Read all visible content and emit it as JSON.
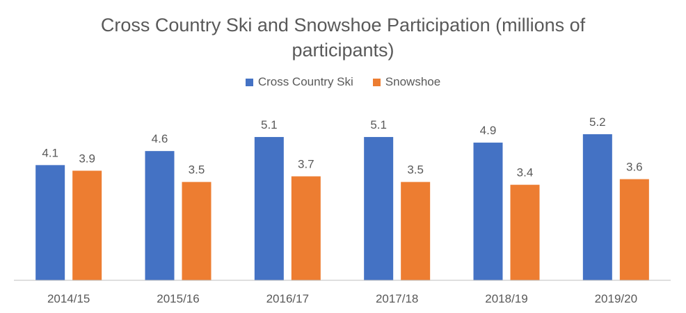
{
  "chart_data": {
    "type": "bar",
    "title": "Cross Country Ski and Snowshoe Participation (millions of participants)",
    "xlabel": "",
    "ylabel": "",
    "categories": [
      "2014/15",
      "2015/16",
      "2016/17",
      "2017/18",
      "2018/19",
      "2019/20"
    ],
    "series": [
      {
        "name": "Cross Country Ski",
        "color": "#4472C4",
        "values": [
          4.1,
          4.6,
          5.1,
          5.1,
          4.9,
          5.2
        ]
      },
      {
        "name": "Snowshoe",
        "color": "#ED7D31",
        "values": [
          3.9,
          3.5,
          3.7,
          3.5,
          3.4,
          3.6
        ]
      }
    ],
    "ylim": [
      0,
      6.0
    ],
    "grid": false,
    "legend_position": "top",
    "data_labels": true
  },
  "colors": {
    "axis": "#BFBFBF",
    "text": "#595959",
    "title": "#595959"
  }
}
